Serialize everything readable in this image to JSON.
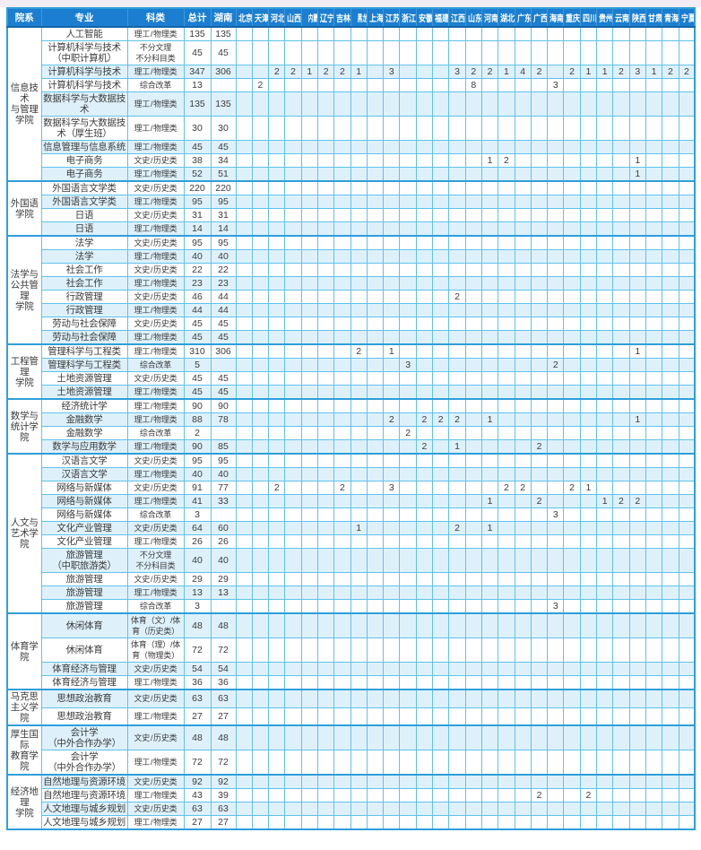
{
  "table": {
    "fixed_columns": [
      "院系",
      "专业",
      "科类",
      "总计",
      "湖南"
    ],
    "provinces": [
      "北京",
      "天津",
      "河北",
      "山西",
      "内蒙古",
      "辽宁",
      "吉林",
      "黑龙江",
      "上海",
      "江苏",
      "浙江",
      "安徽",
      "福建",
      "江西",
      "山东",
      "河南",
      "湖北",
      "广东",
      "广西",
      "海南",
      "重庆",
      "四川",
      "贵州",
      "云南",
      "陕西",
      "甘肃",
      "青海",
      "宁夏"
    ],
    "colors": {
      "header_bg": "#1b7ed0",
      "header_text": "#ffffff",
      "stripe_row": "#def1fb",
      "grid_line": "#5fc2ec",
      "heavy_line": "#2e9fd9",
      "body_text": "#3b3b3b"
    },
    "departments": [
      {
        "name": "信息技术\n与管理\n学院",
        "rows": [
          {
            "major": "人工智能",
            "category": "理工 / 物理类",
            "total": "135",
            "hunan": "135",
            "values": {}
          },
          {
            "major": "计算机科学与技术\n（中职计算机）",
            "category": "不分文理\n不分科目类",
            "total": "45",
            "hunan": "45",
            "values": {}
          },
          {
            "major": "计算机科学与技术",
            "category": "理工 / 物理类",
            "total": "347",
            "hunan": "306",
            "values": {
              "河北": 2,
              "山西": 2,
              "内蒙古": 1,
              "辽宁": 2,
              "吉林": 2,
              "黑龙江": 1,
              "江苏": 3,
              "江西": 3,
              "山东": 2,
              "河南": 2,
              "湖北": 1,
              "广东": 4,
              "广西": 2,
              "重庆": 2,
              "四川": 1,
              "贵州": 1,
              "云南": 2,
              "陕西": 3,
              "甘肃": 1,
              "青海": 2,
              "宁夏": 2
            }
          },
          {
            "major": "计算机科学与技术",
            "category": "综合改革",
            "total": "13",
            "hunan": "",
            "values": {
              "天津": 2,
              "山东": 8,
              "海南": 3
            }
          },
          {
            "major": "数据科学与大数据技术",
            "category": "理工 / 物理类",
            "total": "135",
            "hunan": "135",
            "values": {}
          },
          {
            "major": "数据科学与大数据技术（厚生班）",
            "category": "理工 / 物理类",
            "total": "30",
            "hunan": "30",
            "values": {}
          },
          {
            "major": "信息管理与信息系统",
            "category": "理工 / 物理类",
            "total": "45",
            "hunan": "45",
            "values": {}
          },
          {
            "major": "电子商务",
            "category": "文史 / 历史类",
            "total": "38",
            "hunan": "34",
            "values": {
              "河南": 1,
              "湖北": 2,
              "陕西": 1
            }
          },
          {
            "major": "电子商务",
            "category": "理工 / 物理类",
            "total": "52",
            "hunan": "51",
            "values": {
              "陕西": 1
            }
          }
        ]
      },
      {
        "name": "外国语\n学院",
        "rows": [
          {
            "major": "外国语言文学类",
            "category": "文史 / 历史类",
            "total": "220",
            "hunan": "220",
            "values": {}
          },
          {
            "major": "外国语言文学类",
            "category": "理工 / 物理类",
            "total": "95",
            "hunan": "95",
            "values": {}
          },
          {
            "major": "日语",
            "category": "文史 / 历史类",
            "total": "31",
            "hunan": "31",
            "values": {}
          },
          {
            "major": "日语",
            "category": "理工 / 物理类",
            "total": "14",
            "hunan": "14",
            "values": {}
          }
        ]
      },
      {
        "name": "法学与\n公共管理\n学院",
        "rows": [
          {
            "major": "法学",
            "category": "文史 / 历史类",
            "total": "95",
            "hunan": "95",
            "values": {}
          },
          {
            "major": "法学",
            "category": "理工 / 物理类",
            "total": "40",
            "hunan": "40",
            "values": {}
          },
          {
            "major": "社会工作",
            "category": "文史 / 历史类",
            "total": "22",
            "hunan": "22",
            "values": {}
          },
          {
            "major": "社会工作",
            "category": "理工 / 物理类",
            "total": "23",
            "hunan": "23",
            "values": {}
          },
          {
            "major": "行政管理",
            "category": "文史 / 历史类",
            "total": "46",
            "hunan": "44",
            "values": {
              "江西": 2
            }
          },
          {
            "major": "行政管理",
            "category": "理工 / 物理类",
            "total": "44",
            "hunan": "44",
            "values": {}
          },
          {
            "major": "劳动与社会保障",
            "category": "文史 / 历史类",
            "total": "45",
            "hunan": "45",
            "values": {}
          },
          {
            "major": "劳动与社会保障",
            "category": "理工 / 物理类",
            "total": "45",
            "hunan": "45",
            "values": {}
          }
        ]
      },
      {
        "name": "工程管理\n学院",
        "rows": [
          {
            "major": "管理科学与工程类",
            "category": "理工 / 物理类",
            "total": "310",
            "hunan": "306",
            "values": {
              "黑龙江": 2,
              "江苏": 1,
              "陕西": 1
            }
          },
          {
            "major": "管理科学与工程类",
            "category": "综合改革",
            "total": "5",
            "hunan": "",
            "values": {
              "浙江": 3,
              "海南": 2
            }
          },
          {
            "major": "土地资源管理",
            "category": "文史 / 历史类",
            "total": "45",
            "hunan": "45",
            "values": {}
          },
          {
            "major": "土地资源管理",
            "category": "理工 / 物理类",
            "total": "45",
            "hunan": "45",
            "values": {}
          }
        ]
      },
      {
        "name": "数学与\n统计学院",
        "rows": [
          {
            "major": "经济统计学",
            "category": "理工 / 物理类",
            "total": "90",
            "hunan": "90",
            "values": {}
          },
          {
            "major": "金融数学",
            "category": "理工 / 物理类",
            "total": "88",
            "hunan": "78",
            "values": {
              "江苏": 2,
              "安徽": 2,
              "福建": 2,
              "江西": 2,
              "河南": 1,
              "陕西": 1
            }
          },
          {
            "major": "金融数学",
            "category": "综合改革",
            "total": "2",
            "hunan": "",
            "values": {
              "浙江": 2
            }
          },
          {
            "major": "数学与应用数学",
            "category": "理工 / 物理类",
            "total": "90",
            "hunan": "85",
            "values": {
              "安徽": 2,
              "江西": 1,
              "广西": 2
            }
          }
        ]
      },
      {
        "name": "人文与\n艺术学院",
        "rows": [
          {
            "major": "汉语言文学",
            "category": "文史 / 历史类",
            "total": "95",
            "hunan": "95",
            "values": {}
          },
          {
            "major": "汉语言文学",
            "category": "理工 / 物理类",
            "total": "40",
            "hunan": "40",
            "values": {}
          },
          {
            "major": "网络与新媒体",
            "category": "文史 / 历史类",
            "total": "91",
            "hunan": "77",
            "values": {
              "河北": 2,
              "吉林": 2,
              "江苏": 3,
              "湖北": 2,
              "广东": 2,
              "重庆": 2,
              "四川": 1
            }
          },
          {
            "major": "网络与新媒体",
            "category": "理工 / 物理类",
            "total": "41",
            "hunan": "33",
            "values": {
              "河南": 1,
              "广西": 2,
              "贵州": 1,
              "云南": 2,
              "陕西": 2
            }
          },
          {
            "major": "网络与新媒体",
            "category": "综合改革",
            "total": "3",
            "hunan": "",
            "values": {
              "海南": 3
            }
          },
          {
            "major": "文化产业管理",
            "category": "文史 / 历史类",
            "total": "64",
            "hunan": "60",
            "values": {
              "黑龙江": 1,
              "江西": 2,
              "河南": 1
            }
          },
          {
            "major": "文化产业管理",
            "category": "理工 / 物理类",
            "total": "26",
            "hunan": "26",
            "values": {}
          },
          {
            "major": "旅游管理\n（中职旅游类）",
            "category": "不分文理\n不分科目类",
            "total": "40",
            "hunan": "40",
            "values": {}
          },
          {
            "major": "旅游管理",
            "category": "文史 / 历史类",
            "total": "29",
            "hunan": "29",
            "values": {}
          },
          {
            "major": "旅游管理",
            "category": "理工 / 物理类",
            "total": "13",
            "hunan": "13",
            "values": {}
          },
          {
            "major": "旅游管理",
            "category": "综合改革",
            "total": "3",
            "hunan": "",
            "values": {
              "海南": 3
            }
          }
        ]
      },
      {
        "name": "体育学院",
        "rows": [
          {
            "major": "休闲体育",
            "category": "体育（文）/体育（历史类）",
            "total": "48",
            "hunan": "48",
            "values": {}
          },
          {
            "major": "休闲体育",
            "category": "体育（理）/体育（物理类）",
            "total": "72",
            "hunan": "72",
            "values": {}
          },
          {
            "major": "体育经济与管理",
            "category": "文史 / 历史类",
            "total": "54",
            "hunan": "54",
            "values": {}
          },
          {
            "major": "体育经济与管理",
            "category": "理工 / 物理类",
            "total": "36",
            "hunan": "36",
            "values": {}
          }
        ]
      },
      {
        "name": "马克思\n主义学院",
        "rows": [
          {
            "major": "思想政治教育",
            "category": "文史 / 历史类",
            "total": "63",
            "hunan": "63",
            "values": {}
          },
          {
            "major": "思想政治教育",
            "category": "理工 / 物理类",
            "total": "27",
            "hunan": "27",
            "values": {}
          }
        ]
      },
      {
        "name": "厚生国际\n教育学院",
        "rows": [
          {
            "major": "会计学\n（中外合作办学）",
            "category": "文史 / 历史类",
            "total": "48",
            "hunan": "48",
            "values": {}
          },
          {
            "major": "会计学\n（中外合作办学）",
            "category": "理工 / 物理类",
            "total": "72",
            "hunan": "72",
            "values": {}
          }
        ]
      },
      {
        "name": "经济地理\n学院",
        "rows": [
          {
            "major": "自然地理与资源环境",
            "category": "文史 / 历史类",
            "total": "92",
            "hunan": "92",
            "values": {}
          },
          {
            "major": "自然地理与资源环境",
            "category": "理工 / 物理类",
            "total": "43",
            "hunan": "39",
            "values": {
              "广西": 2,
              "四川": 2
            }
          },
          {
            "major": "人文地理与城乡规划",
            "category": "文史 / 历史类",
            "total": "63",
            "hunan": "63",
            "values": {}
          },
          {
            "major": "人文地理与城乡规划",
            "category": "理工 / 物理类",
            "total": "27",
            "hunan": "27",
            "values": {}
          }
        ]
      }
    ]
  }
}
